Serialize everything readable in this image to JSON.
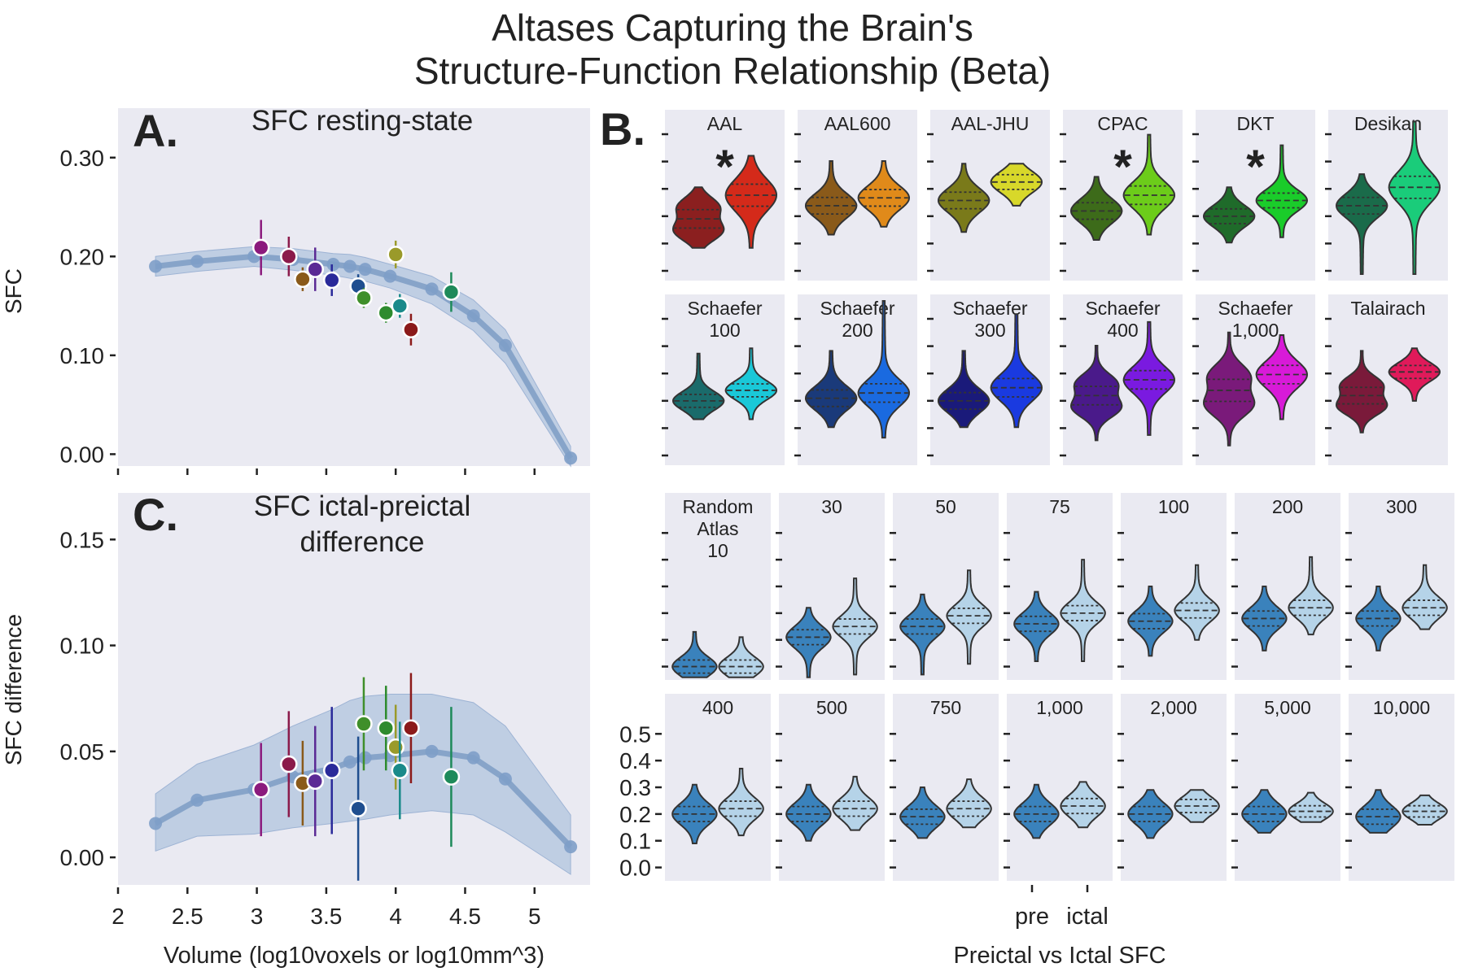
{
  "title_line1": "Altases Capturing the Brain's",
  "title_line2": "Structure-Function Relationship (Beta)",
  "panel_letters": {
    "a": "A.",
    "b": "B.",
    "c": "C."
  },
  "chart_data": [
    {
      "type": "line",
      "panel": "A",
      "title": "SFC resting-state",
      "ylabel": "SFC",
      "ylim": [
        -0.012,
        0.35
      ],
      "yticks": [
        "0.00",
        "0.10",
        "0.20",
        "0.30"
      ],
      "ytick_values": [
        0.0,
        0.1,
        0.2,
        0.3
      ],
      "xlim": [
        2,
        5.4
      ],
      "grid": false,
      "random_atlas_curve": {
        "x": [
          2.27,
          2.57,
          2.98,
          3.26,
          3.55,
          3.67,
          3.78,
          3.96,
          4.26,
          4.56,
          4.79,
          5.26
        ],
        "y": [
          0.19,
          0.195,
          0.2,
          0.197,
          0.192,
          0.19,
          0.187,
          0.18,
          0.167,
          0.14,
          0.11,
          -0.004
        ],
        "band_low": [
          0.18,
          0.185,
          0.19,
          0.186,
          0.181,
          0.178,
          0.175,
          0.168,
          0.152,
          0.125,
          0.092,
          -0.012
        ],
        "band_high": [
          0.2,
          0.205,
          0.21,
          0.208,
          0.203,
          0.202,
          0.199,
          0.192,
          0.18,
          0.156,
          0.126,
          0.008
        ]
      },
      "atlas_points": [
        {
          "x": 3.03,
          "y": 0.209,
          "err": 0.028,
          "color": "#8b1a7d"
        },
        {
          "x": 3.23,
          "y": 0.2,
          "err": 0.02,
          "color": "#8b1a4a"
        },
        {
          "x": 3.33,
          "y": 0.177,
          "err": 0.012,
          "color": "#8a5a1a"
        },
        {
          "x": 3.42,
          "y": 0.187,
          "err": 0.022,
          "color": "#5b2a95"
        },
        {
          "x": 3.54,
          "y": 0.176,
          "err": 0.016,
          "color": "#2a2a9a"
        },
        {
          "x": 3.73,
          "y": 0.17,
          "err": 0.012,
          "color": "#1f4e8f"
        },
        {
          "x": 3.77,
          "y": 0.158,
          "err": 0.01,
          "color": "#3f8f2a"
        },
        {
          "x": 3.93,
          "y": 0.143,
          "err": 0.01,
          "color": "#2e8b2e"
        },
        {
          "x": 4.0,
          "y": 0.202,
          "err": 0.014,
          "color": "#9a9a2a"
        },
        {
          "x": 4.03,
          "y": 0.15,
          "err": 0.012,
          "color": "#1a8a8a"
        },
        {
          "x": 4.11,
          "y": 0.126,
          "err": 0.016,
          "color": "#8b1a1a"
        },
        {
          "x": 4.4,
          "y": 0.164,
          "err": 0.02,
          "color": "#1e8a5a"
        }
      ]
    },
    {
      "type": "line",
      "panel": "C",
      "title_line1": "SFC ictal-preictal",
      "title_line2": "difference",
      "xlabel": "Volume (log10voxels or log10mm^3)",
      "ylabel": "SFC difference",
      "ylim": [
        -0.013,
        0.172
      ],
      "yticks": [
        "0.00",
        "0.05",
        "0.10",
        "0.15"
      ],
      "ytick_values": [
        0.0,
        0.05,
        0.1,
        0.15
      ],
      "xlim": [
        2,
        5.4
      ],
      "xticks": [
        "2",
        "2.5",
        "3",
        "3.5",
        "4",
        "4.5",
        "5"
      ],
      "xtick_values": [
        2,
        2.5,
        3,
        3.5,
        4,
        4.5,
        5
      ],
      "grid": false,
      "random_atlas_curve": {
        "x": [
          2.27,
          2.57,
          2.98,
          3.26,
          3.55,
          3.67,
          3.78,
          3.96,
          4.26,
          4.56,
          4.79,
          5.26
        ],
        "y": [
          0.016,
          0.027,
          0.032,
          0.038,
          0.042,
          0.045,
          0.047,
          0.048,
          0.05,
          0.047,
          0.037,
          0.005
        ],
        "band_low": [
          0.003,
          0.01,
          0.011,
          0.014,
          0.016,
          0.017,
          0.018,
          0.02,
          0.022,
          0.02,
          0.012,
          -0.008
        ],
        "band_high": [
          0.03,
          0.044,
          0.053,
          0.062,
          0.07,
          0.074,
          0.076,
          0.077,
          0.077,
          0.073,
          0.062,
          0.02
        ]
      },
      "atlas_points": [
        {
          "x": 3.03,
          "y": 0.032,
          "err": 0.022,
          "color": "#8b1a7d"
        },
        {
          "x": 3.23,
          "y": 0.044,
          "err": 0.025,
          "color": "#8b1a4a"
        },
        {
          "x": 3.33,
          "y": 0.035,
          "err": 0.02,
          "color": "#8a5a1a"
        },
        {
          "x": 3.42,
          "y": 0.036,
          "err": 0.026,
          "color": "#5b2a95"
        },
        {
          "x": 3.54,
          "y": 0.041,
          "err": 0.03,
          "color": "#2a2a9a"
        },
        {
          "x": 3.73,
          "y": 0.023,
          "err": 0.034,
          "color": "#1f4e8f"
        },
        {
          "x": 3.77,
          "y": 0.063,
          "err": 0.022,
          "color": "#3f8f2a"
        },
        {
          "x": 3.93,
          "y": 0.061,
          "err": 0.02,
          "color": "#2e8b2e"
        },
        {
          "x": 4.0,
          "y": 0.052,
          "err": 0.02,
          "color": "#9a9a2a"
        },
        {
          "x": 4.03,
          "y": 0.041,
          "err": 0.023,
          "color": "#1a8a8a"
        },
        {
          "x": 4.11,
          "y": 0.061,
          "err": 0.026,
          "color": "#8b1a1a"
        },
        {
          "x": 4.4,
          "y": 0.038,
          "err": 0.033,
          "color": "#1e8a5a"
        }
      ]
    },
    {
      "type": "violin",
      "panel": "B",
      "xlabel": "Preictal vs Ictal SFC",
      "categories": [
        "pre",
        "ictal"
      ],
      "ylim": [
        -0.05,
        0.65
      ],
      "yticks": [
        "0.0",
        "0.1",
        "0.2",
        "0.3",
        "0.4",
        "0.5"
      ],
      "ytick_values": [
        0.0,
        0.1,
        0.2,
        0.3,
        0.4,
        0.5
      ],
      "standard_atlases": [
        {
          "name": [
            "AAL"
          ],
          "significant": true,
          "pre": {
            "center": 0.21,
            "spread": 0.05,
            "lo": 0.1,
            "hi": 0.33,
            "bimodal": true
          },
          "ictal": {
            "center": 0.3,
            "spread": 0.06,
            "lo": 0.1,
            "hi": 0.45,
            "bimodal": false
          },
          "pre_color": "#8b1f1f",
          "ictal_color": "#d42a1a"
        },
        {
          "name": [
            "AAL600"
          ],
          "significant": false,
          "pre": {
            "center": 0.26,
            "spread": 0.045,
            "lo": 0.15,
            "hi": 0.43,
            "bimodal": false
          },
          "ictal": {
            "center": 0.29,
            "spread": 0.045,
            "lo": 0.18,
            "hi": 0.43,
            "bimodal": false
          },
          "pre_color": "#8a5a1a",
          "ictal_color": "#e08a1a"
        },
        {
          "name": [
            "AAL-JHU"
          ],
          "significant": false,
          "pre": {
            "center": 0.28,
            "spread": 0.045,
            "lo": 0.16,
            "hi": 0.42,
            "bimodal": false
          },
          "ictal": {
            "center": 0.35,
            "spread": 0.04,
            "lo": 0.26,
            "hi": 0.42,
            "bimodal": false
          },
          "pre_color": "#7a7a1a",
          "ictal_color": "#d8d82a"
        },
        {
          "name": [
            "CPAC"
          ],
          "significant": true,
          "pre": {
            "center": 0.24,
            "spread": 0.045,
            "lo": 0.13,
            "hi": 0.37,
            "bimodal": false
          },
          "ictal": {
            "center": 0.3,
            "spread": 0.05,
            "lo": 0.15,
            "hi": 0.53,
            "bimodal": false
          },
          "pre_color": "#3d6b1a",
          "ictal_color": "#6ccc1a"
        },
        {
          "name": [
            "DKT"
          ],
          "significant": true,
          "pre": {
            "center": 0.22,
            "spread": 0.04,
            "lo": 0.12,
            "hi": 0.33,
            "bimodal": false
          },
          "ictal": {
            "center": 0.28,
            "spread": 0.04,
            "lo": 0.14,
            "hi": 0.49,
            "bimodal": false
          },
          "pre_color": "#1f6b2a",
          "ictal_color": "#1acc2a"
        },
        {
          "name": [
            "Desikan"
          ],
          "significant": false,
          "pre": {
            "center": 0.26,
            "spread": 0.045,
            "lo": 0.0,
            "hi": 0.38,
            "bimodal": false
          },
          "ictal": {
            "center": 0.33,
            "spread": 0.06,
            "lo": 0.0,
            "hi": 0.58,
            "bimodal": false
          },
          "pre_color": "#1a6b4a",
          "ictal_color": "#1acc7a"
        },
        {
          "name": [
            "Schaefer",
            "100"
          ],
          "significant": false,
          "pre": {
            "center": 0.22,
            "spread": 0.035,
            "lo": 0.15,
            "hi": 0.4,
            "bimodal": false
          },
          "ictal": {
            "center": 0.26,
            "spread": 0.035,
            "lo": 0.15,
            "hi": 0.42,
            "bimodal": false
          },
          "pre_color": "#1a6b6b",
          "ictal_color": "#1ac8d8"
        },
        {
          "name": [
            "Schaefer",
            "200"
          ],
          "significant": false,
          "pre": {
            "center": 0.23,
            "spread": 0.045,
            "lo": 0.12,
            "hi": 0.41,
            "bimodal": false
          },
          "ictal": {
            "center": 0.25,
            "spread": 0.05,
            "lo": 0.08,
            "hi": 0.6,
            "bimodal": false
          },
          "pre_color": "#1a3a7a",
          "ictal_color": "#1a6ae0"
        },
        {
          "name": [
            "Schaefer",
            "300"
          ],
          "significant": false,
          "pre": {
            "center": 0.22,
            "spread": 0.045,
            "lo": 0.12,
            "hi": 0.41,
            "bimodal": false
          },
          "ictal": {
            "center": 0.27,
            "spread": 0.05,
            "lo": 0.12,
            "hi": 0.55,
            "bimodal": false
          },
          "pre_color": "#1a1a7a",
          "ictal_color": "#1a3ae0"
        },
        {
          "name": [
            "Schaefer",
            "400"
          ],
          "significant": false,
          "pre": {
            "center": 0.24,
            "spread": 0.05,
            "lo": 0.07,
            "hi": 0.43,
            "bimodal": true
          },
          "ictal": {
            "center": 0.3,
            "spread": 0.05,
            "lo": 0.09,
            "hi": 0.52,
            "bimodal": false
          },
          "pre_color": "#4a1a8a",
          "ictal_color": "#7a1ae0"
        },
        {
          "name": [
            "Schaefer",
            "1,000"
          ],
          "significant": false,
          "pre": {
            "center": 0.26,
            "spread": 0.06,
            "lo": 0.05,
            "hi": 0.48,
            "bimodal": true
          },
          "ictal": {
            "center": 0.32,
            "spread": 0.05,
            "lo": 0.15,
            "hi": 0.47,
            "bimodal": false
          },
          "pre_color": "#7a1a7a",
          "ictal_color": "#d81ad8"
        },
        {
          "name": [
            "Talairach"
          ],
          "significant": false,
          "pre": {
            "center": 0.24,
            "spread": 0.045,
            "lo": 0.1,
            "hi": 0.41,
            "bimodal": true
          },
          "ictal": {
            "center": 0.33,
            "spread": 0.035,
            "lo": 0.22,
            "hi": 0.42,
            "bimodal": false
          },
          "pre_color": "#7a1a3a",
          "ictal_color": "#e01a5a"
        }
      ],
      "random_atlases": [
        {
          "name": [
            "Random",
            "Atlas",
            "10"
          ],
          "pre": {
            "center": 0.0,
            "spread": 0.035,
            "lo": -0.04,
            "hi": 0.13
          },
          "ictal": {
            "center": 0.0,
            "spread": 0.035,
            "lo": -0.04,
            "hi": 0.11
          }
        },
        {
          "name": [
            "30"
          ],
          "pre": {
            "center": 0.11,
            "spread": 0.04,
            "lo": -0.04,
            "hi": 0.22
          },
          "ictal": {
            "center": 0.15,
            "spread": 0.04,
            "lo": -0.03,
            "hi": 0.33
          }
        },
        {
          "name": [
            "50"
          ],
          "pre": {
            "center": 0.15,
            "spread": 0.04,
            "lo": -0.03,
            "hi": 0.27
          },
          "ictal": {
            "center": 0.19,
            "spread": 0.04,
            "lo": 0.01,
            "hi": 0.36
          }
        },
        {
          "name": [
            "75"
          ],
          "pre": {
            "center": 0.16,
            "spread": 0.04,
            "lo": 0.02,
            "hi": 0.28
          },
          "ictal": {
            "center": 0.2,
            "spread": 0.04,
            "lo": 0.02,
            "hi": 0.4
          }
        },
        {
          "name": [
            "100"
          ],
          "pre": {
            "center": 0.17,
            "spread": 0.04,
            "lo": 0.04,
            "hi": 0.3
          },
          "ictal": {
            "center": 0.21,
            "spread": 0.04,
            "lo": 0.1,
            "hi": 0.38
          }
        },
        {
          "name": [
            "200"
          ],
          "pre": {
            "center": 0.18,
            "spread": 0.04,
            "lo": 0.06,
            "hi": 0.3
          },
          "ictal": {
            "center": 0.22,
            "spread": 0.04,
            "lo": 0.12,
            "hi": 0.41
          }
        },
        {
          "name": [
            "300"
          ],
          "pre": {
            "center": 0.18,
            "spread": 0.04,
            "lo": 0.06,
            "hi": 0.3
          },
          "ictal": {
            "center": 0.22,
            "spread": 0.04,
            "lo": 0.14,
            "hi": 0.38
          }
        },
        {
          "name": [
            "400"
          ],
          "pre": {
            "center": 0.2,
            "spread": 0.04,
            "lo": 0.09,
            "hi": 0.31
          },
          "ictal": {
            "center": 0.22,
            "spread": 0.04,
            "lo": 0.12,
            "hi": 0.37
          }
        },
        {
          "name": [
            "500"
          ],
          "pre": {
            "center": 0.2,
            "spread": 0.04,
            "lo": 0.1,
            "hi": 0.31
          },
          "ictal": {
            "center": 0.22,
            "spread": 0.04,
            "lo": 0.14,
            "hi": 0.34
          }
        },
        {
          "name": [
            "750"
          ],
          "pre": {
            "center": 0.19,
            "spread": 0.04,
            "lo": 0.11,
            "hi": 0.3
          },
          "ictal": {
            "center": 0.22,
            "spread": 0.04,
            "lo": 0.15,
            "hi": 0.33
          }
        },
        {
          "name": [
            "1,000"
          ],
          "pre": {
            "center": 0.2,
            "spread": 0.04,
            "lo": 0.11,
            "hi": 0.31
          },
          "ictal": {
            "center": 0.23,
            "spread": 0.04,
            "lo": 0.15,
            "hi": 0.32
          }
        },
        {
          "name": [
            "2,000"
          ],
          "pre": {
            "center": 0.2,
            "spread": 0.04,
            "lo": 0.11,
            "hi": 0.29
          },
          "ictal": {
            "center": 0.23,
            "spread": 0.035,
            "lo": 0.17,
            "hi": 0.29
          }
        },
        {
          "name": [
            "5,000"
          ],
          "pre": {
            "center": 0.2,
            "spread": 0.04,
            "lo": 0.13,
            "hi": 0.29
          },
          "ictal": {
            "center": 0.21,
            "spread": 0.03,
            "lo": 0.17,
            "hi": 0.28
          }
        },
        {
          "name": [
            "10,000"
          ],
          "pre": {
            "center": 0.19,
            "spread": 0.04,
            "lo": 0.13,
            "hi": 0.29
          },
          "ictal": {
            "center": 0.21,
            "spread": 0.03,
            "lo": 0.16,
            "hi": 0.27
          }
        }
      ],
      "random_pre_color": "#3a82bc",
      "random_ictal_color": "#b5d3e8",
      "significance_marker": "*"
    }
  ],
  "colors": {
    "panel_bg": "#eaeaf2",
    "band": "#b0c4de",
    "curve": "#7d9cc4",
    "text": "#222222"
  }
}
